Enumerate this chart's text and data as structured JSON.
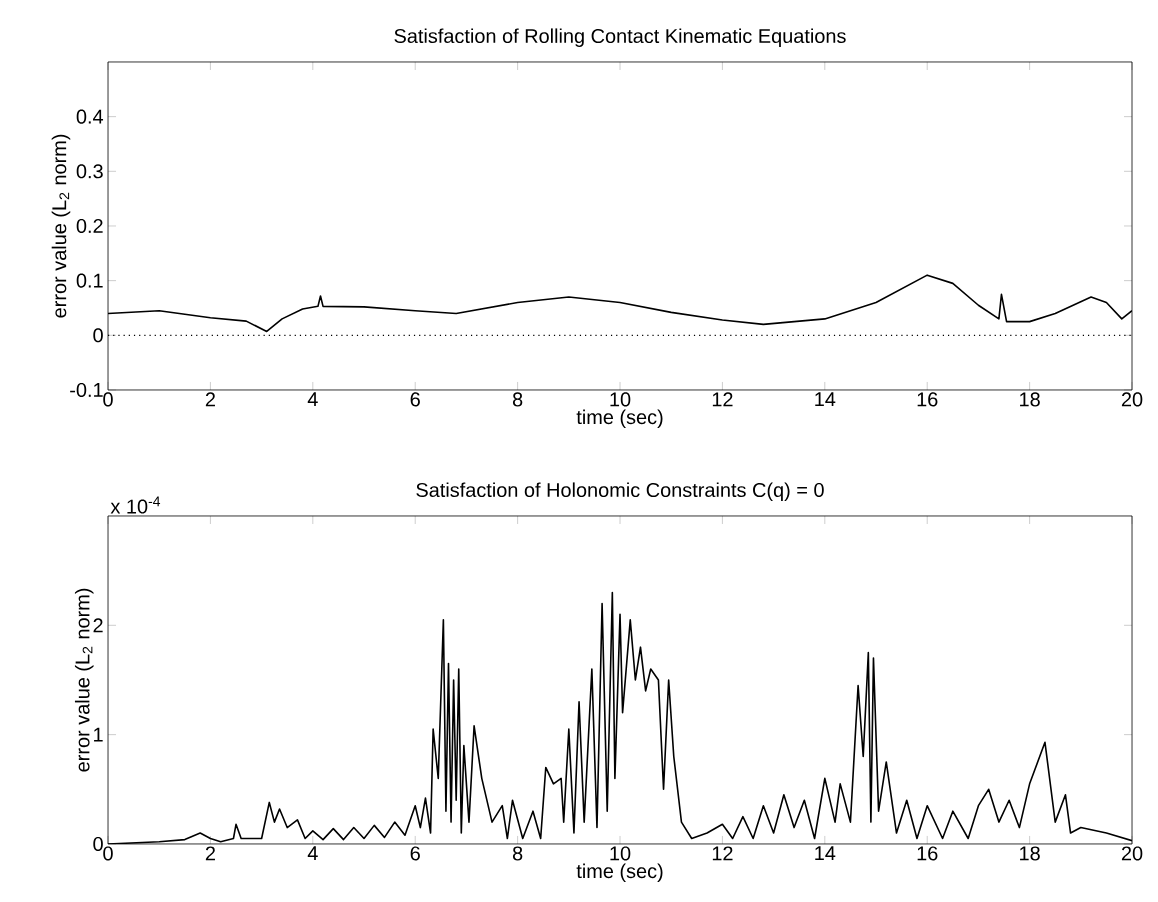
{
  "chart_data": [
    {
      "type": "line",
      "title": "Satisfaction of Rolling Contact Kinematic Equations",
      "xlabel": "time (sec)",
      "ylabel": "error value (L$_{2}$ norm)",
      "xlim": [
        0,
        20
      ],
      "ylim": [
        -0.1,
        0.5
      ],
      "xticks": [
        0,
        2,
        4,
        6,
        8,
        10,
        12,
        14,
        16,
        18,
        20
      ],
      "yticks": [
        -0.1,
        0,
        0.1,
        0.2,
        0.3,
        0.4
      ],
      "ref_lines": [
        {
          "axis": "y",
          "value": 0,
          "line_style": "dotted",
          "color": "#000000"
        }
      ],
      "series": [
        {
          "color": "#000000",
          "x": [
            0,
            1,
            2,
            2.7,
            3.1,
            3.4,
            3.8,
            4.1,
            4.15,
            4.2,
            5,
            6,
            6.8,
            8,
            9,
            10,
            11,
            12,
            12.8,
            14,
            15,
            16,
            16.5,
            17,
            17.4,
            17.45,
            17.55,
            18,
            18.5,
            19.2,
            19.5,
            19.8,
            20
          ],
          "values": [
            0.04,
            0.045,
            0.032,
            0.026,
            0.007,
            0.03,
            0.048,
            0.053,
            0.072,
            0.053,
            0.052,
            0.045,
            0.04,
            0.06,
            0.07,
            0.06,
            0.042,
            0.028,
            0.02,
            0.03,
            0.06,
            0.11,
            0.095,
            0.055,
            0.03,
            0.075,
            0.025,
            0.025,
            0.04,
            0.07,
            0.06,
            0.03,
            0.045
          ]
        }
      ]
    },
    {
      "type": "line",
      "title": "Satisfaction of Holonomic Constraints C(q) = 0",
      "xlabel": "time (sec)",
      "ylabel": "error value (L$_{2}$ norm)",
      "annotations": [
        "x 10$^{-4}$"
      ],
      "xlim": [
        0,
        20
      ],
      "ylim": [
        0,
        3
      ],
      "xticks": [
        0,
        2,
        4,
        6,
        8,
        10,
        12,
        14,
        16,
        18,
        20
      ],
      "yticks": [
        0,
        1,
        2
      ],
      "series": [
        {
          "color": "#000000",
          "x": [
            0,
            1,
            1.5,
            1.8,
            2,
            2.2,
            2.45,
            2.5,
            2.6,
            3,
            3.15,
            3.25,
            3.35,
            3.5,
            3.7,
            3.85,
            4,
            4.2,
            4.4,
            4.6,
            4.8,
            5,
            5.2,
            5.4,
            5.6,
            5.8,
            6,
            6.1,
            6.2,
            6.3,
            6.35,
            6.45,
            6.55,
            6.6,
            6.65,
            6.7,
            6.75,
            6.8,
            6.85,
            6.9,
            6.95,
            7.05,
            7.15,
            7.3,
            7.5,
            7.7,
            7.8,
            7.9,
            8.1,
            8.3,
            8.45,
            8.55,
            8.7,
            8.85,
            8.9,
            9.0,
            9.1,
            9.2,
            9.3,
            9.45,
            9.55,
            9.65,
            9.75,
            9.85,
            9.9,
            10.0,
            10.05,
            10.2,
            10.3,
            10.4,
            10.5,
            10.6,
            10.75,
            10.85,
            10.95,
            11.05,
            11.2,
            11.4,
            11.7,
            12,
            12.2,
            12.4,
            12.6,
            12.8,
            13,
            13.2,
            13.4,
            13.6,
            13.8,
            14,
            14.2,
            14.3,
            14.5,
            14.65,
            14.75,
            14.85,
            14.9,
            14.95,
            15.05,
            15.2,
            15.4,
            15.6,
            15.8,
            16,
            16.3,
            16.5,
            16.8,
            17.0,
            17.2,
            17.4,
            17.6,
            17.8,
            18.0,
            18.3,
            18.5,
            18.7,
            18.8,
            19,
            19.5,
            20
          ],
          "values": [
            0,
            0.02,
            0.04,
            0.1,
            0.05,
            0.02,
            0.05,
            0.18,
            0.05,
            0.05,
            0.38,
            0.2,
            0.32,
            0.15,
            0.22,
            0.05,
            0.12,
            0.04,
            0.14,
            0.04,
            0.15,
            0.05,
            0.17,
            0.06,
            0.2,
            0.08,
            0.35,
            0.15,
            0.42,
            0.1,
            1.05,
            0.6,
            2.05,
            0.3,
            1.65,
            0.2,
            1.5,
            0.4,
            1.6,
            0.1,
            0.9,
            0.2,
            1.08,
            0.6,
            0.2,
            0.35,
            0.05,
            0.4,
            0.05,
            0.3,
            0.05,
            0.7,
            0.55,
            0.6,
            0.2,
            1.05,
            0.1,
            1.3,
            0.2,
            1.6,
            0.15,
            2.2,
            0.3,
            2.3,
            0.6,
            2.1,
            1.2,
            2.05,
            1.5,
            1.8,
            1.4,
            1.6,
            1.5,
            0.5,
            1.5,
            0.8,
            0.2,
            0.05,
            0.1,
            0.18,
            0.05,
            0.25,
            0.05,
            0.35,
            0.1,
            0.45,
            0.15,
            0.4,
            0.05,
            0.6,
            0.2,
            0.55,
            0.2,
            1.45,
            0.8,
            1.75,
            0.2,
            1.7,
            0.3,
            0.75,
            0.1,
            0.4,
            0.05,
            0.35,
            0.05,
            0.3,
            0.05,
            0.35,
            0.5,
            0.2,
            0.4,
            0.15,
            0.55,
            0.93,
            0.2,
            0.45,
            0.1,
            0.15,
            0.1,
            0.03
          ]
        }
      ]
    }
  ]
}
